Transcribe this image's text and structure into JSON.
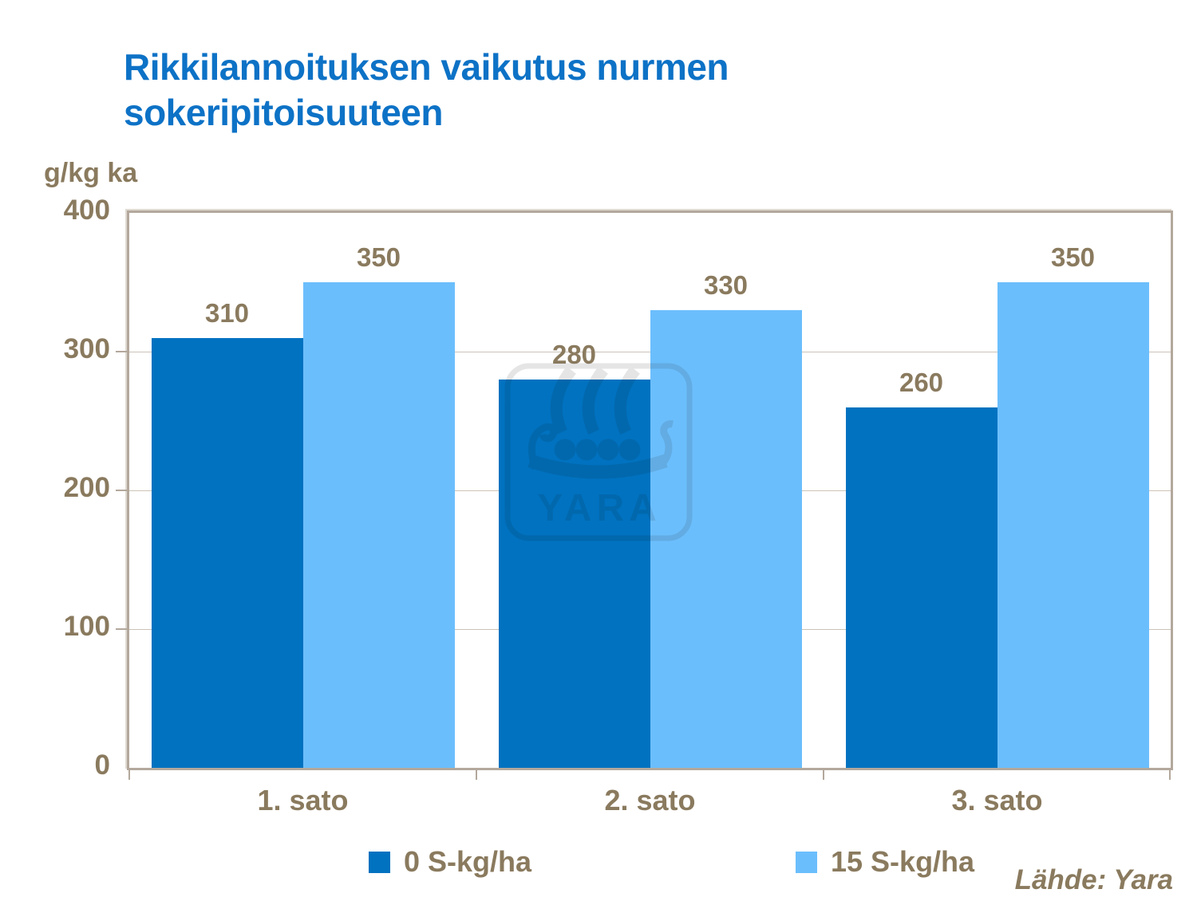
{
  "title": {
    "line1": "Rikkilannoituksen vaikutus nurmen",
    "line2": "sokeripitoisuuteen"
  },
  "watermark_text": "YARA",
  "source_note": "Lähde: Yara",
  "colors": {
    "title": "#0D72C6",
    "text": "#8A7A5E",
    "series0": "#0072C0",
    "series1": "#6BBEFC",
    "plot_border": "#B3A89C",
    "gridline": "#CCC3B8",
    "background": "#FFFFFF"
  },
  "chart_data": {
    "type": "bar",
    "title": "Rikkilannoituksen vaikutus nurmen sokeripitoisuuteen",
    "categories": [
      "1. sato",
      "2. sato",
      "3. sato"
    ],
    "series": [
      {
        "name": "0 S-kg/ha",
        "values": [
          310,
          280,
          260
        ],
        "color": "#0072C0"
      },
      {
        "name": "15 S-kg/ha",
        "values": [
          350,
          330,
          350
        ],
        "color": "#6BBEFC"
      }
    ],
    "xlabel": "",
    "ylabel": "g/kg ka",
    "ylim": [
      0,
      400
    ],
    "yticks": [
      0,
      100,
      200,
      300,
      400
    ],
    "value_labels": true,
    "grid": true,
    "legend_position": "bottom"
  }
}
